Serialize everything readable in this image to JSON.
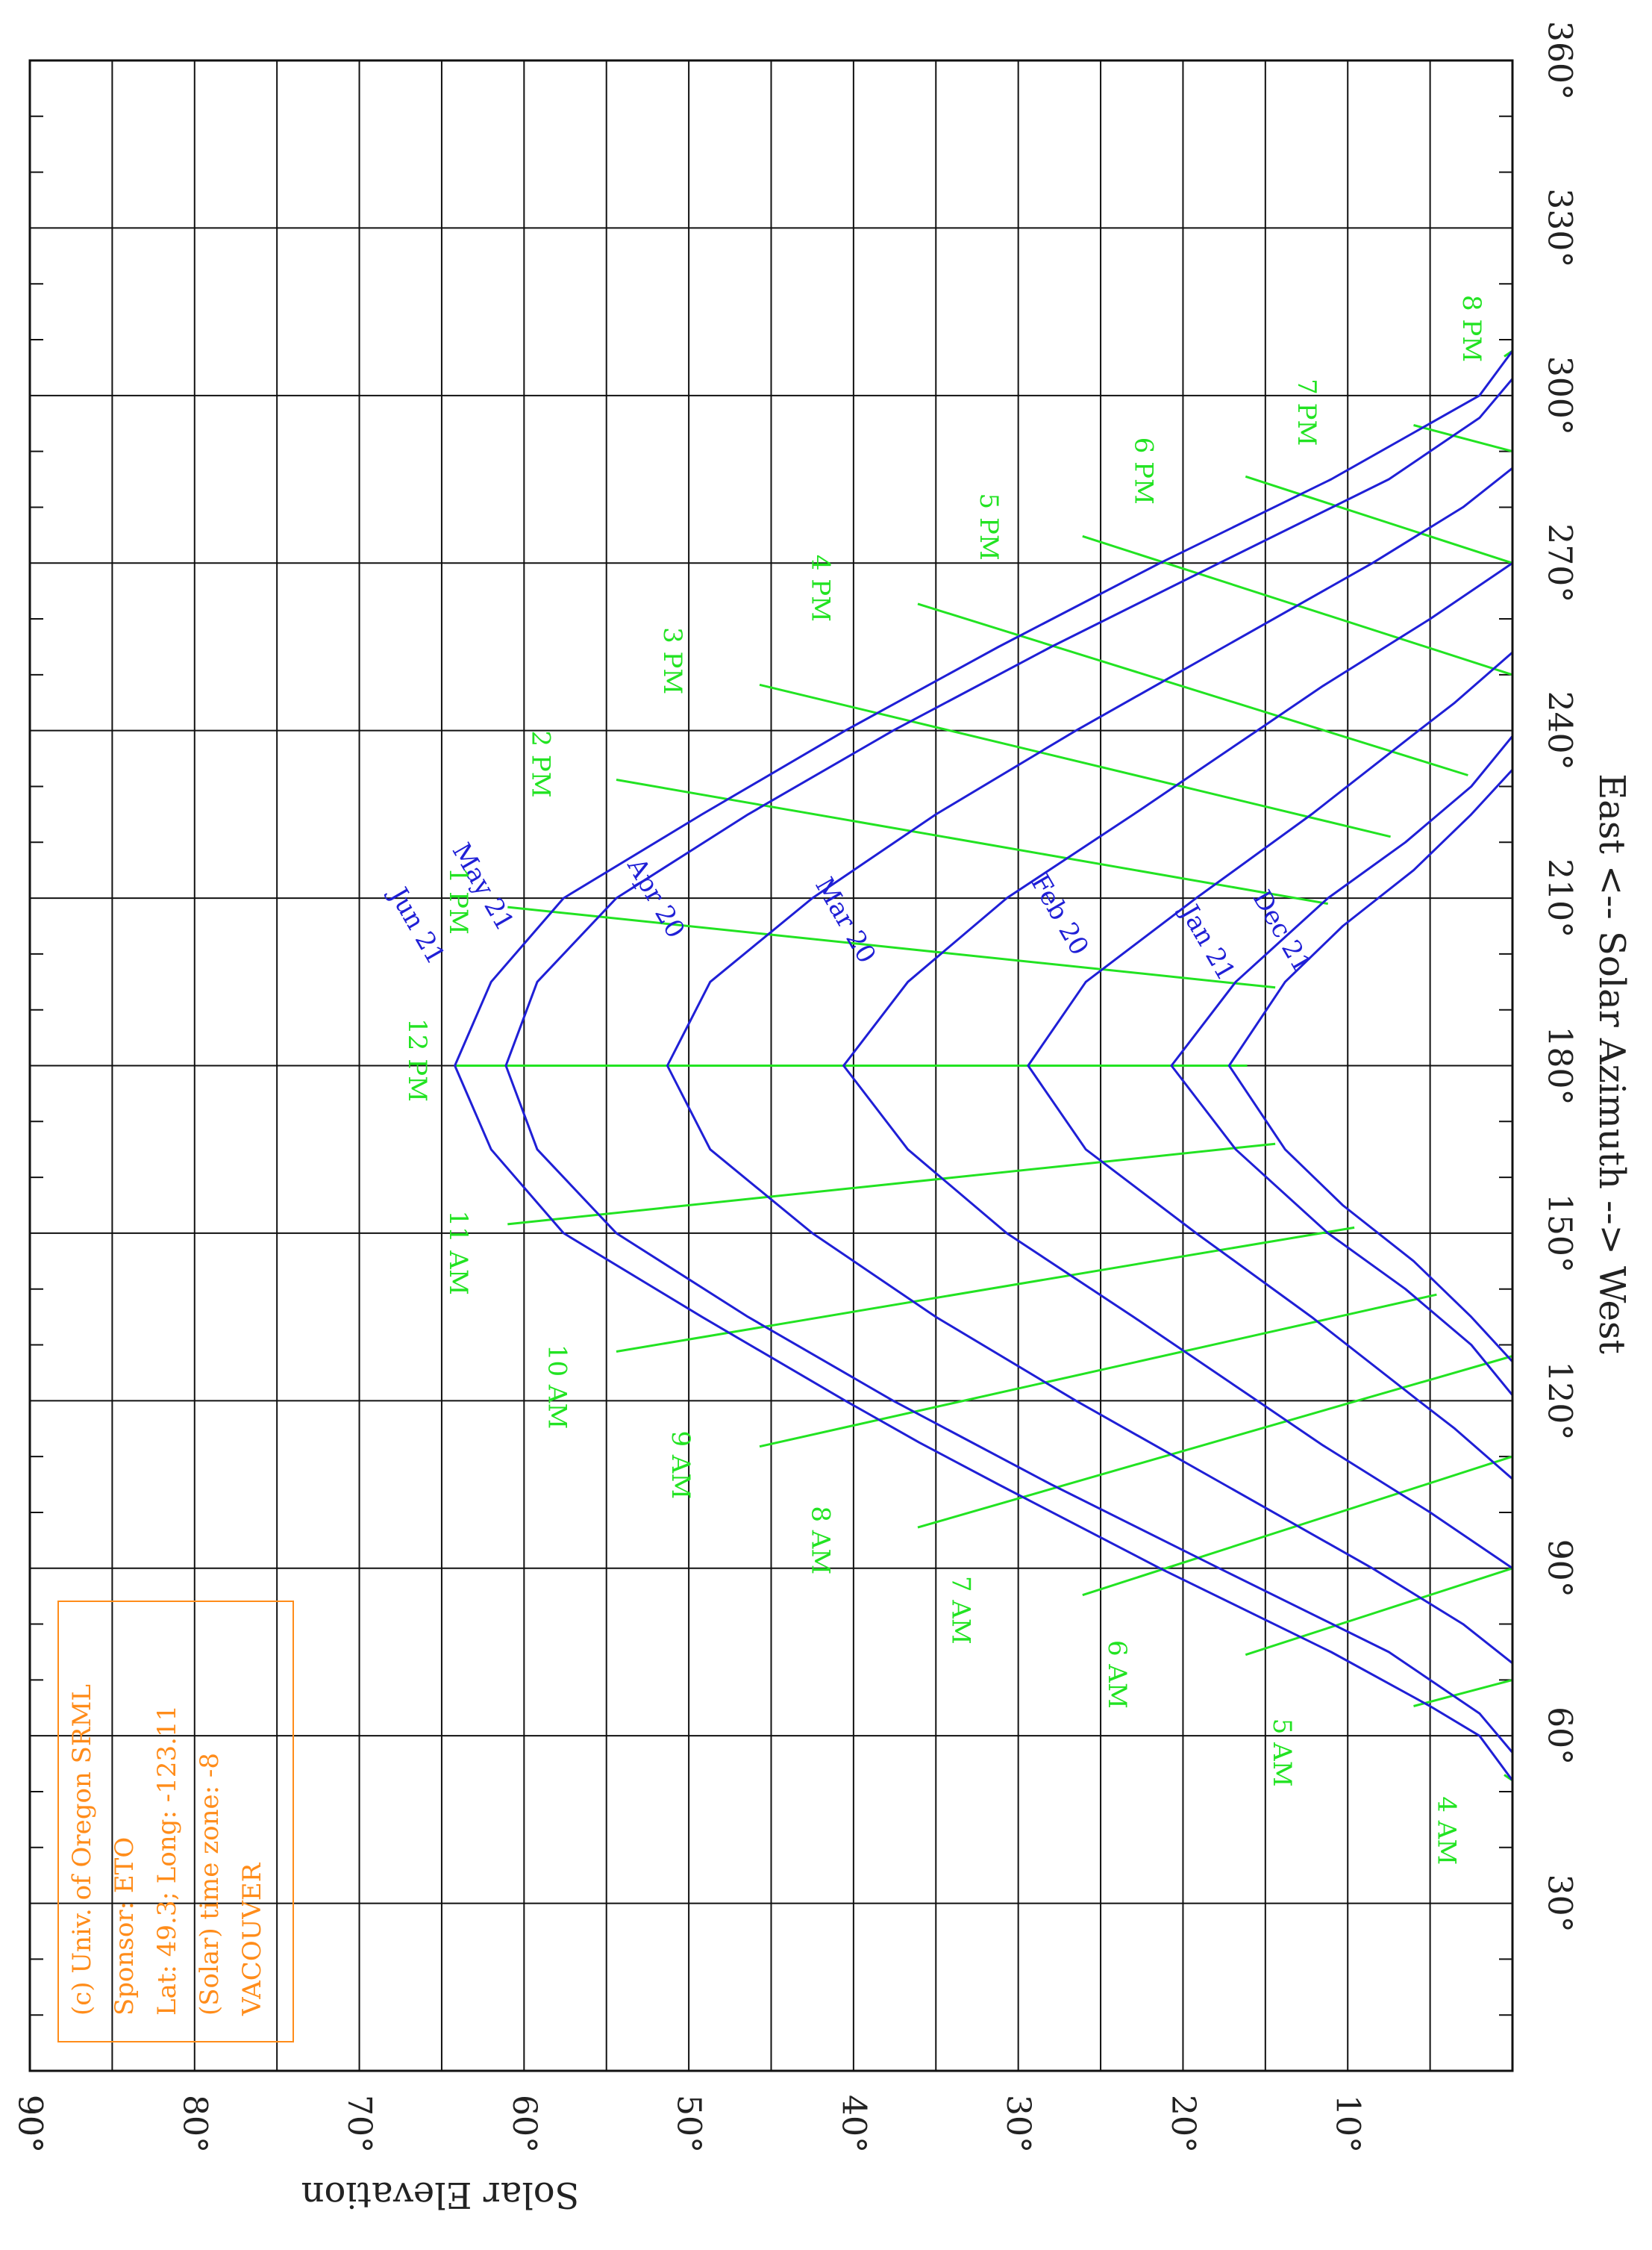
{
  "chart_data": {
    "type": "line",
    "x_axis": {
      "label": "East <-- Solar Azimuth --> West",
      "range": [
        0,
        360
      ],
      "tick_labels": [
        "30°",
        "60°",
        "90°",
        "120°",
        "150°",
        "180°",
        "210°",
        "240°",
        "270°",
        "300°",
        "330°",
        "360°"
      ],
      "tick_values": [
        30,
        60,
        90,
        120,
        150,
        180,
        210,
        240,
        270,
        300,
        330,
        360
      ]
    },
    "y_axis": {
      "label": "Solar Elevation",
      "range": [
        0,
        90
      ],
      "tick_labels": [
        "10°",
        "20°",
        "30°",
        "40°",
        "50°",
        "60°",
        "70°",
        "80°",
        "90°"
      ],
      "tick_values": [
        10,
        20,
        30,
        40,
        50,
        60,
        70,
        80,
        90
      ]
    },
    "grid": true,
    "orientation": "rotated 90° clockwise",
    "colors": {
      "sun_path": "#1f1fd6",
      "hour_line": "#22e322",
      "info_box": "#ff8c1a",
      "grid": "#111111"
    },
    "series": [
      {
        "name": "Jun 21",
        "points": [
          [
            52,
            0
          ],
          [
            60,
            2
          ],
          [
            65.3,
            5
          ],
          [
            75,
            11
          ],
          [
            90,
            21.4
          ],
          [
            105,
            31.2
          ],
          [
            112.5,
            36
          ],
          [
            120,
            40.5
          ],
          [
            135,
            49.2
          ],
          [
            150,
            57.6
          ],
          [
            165,
            62
          ],
          [
            180,
            64.2
          ],
          [
            195,
            62
          ],
          [
            210,
            57.6
          ],
          [
            225,
            49.2
          ],
          [
            240,
            40.5
          ],
          [
            255,
            31.2
          ],
          [
            270,
            21.4
          ],
          [
            285,
            11
          ],
          [
            300,
            2
          ],
          [
            308,
            0
          ]
        ]
      },
      {
        "name": "May 21",
        "points": [
          [
            57,
            0
          ],
          [
            64,
            2
          ],
          [
            75,
            7.5
          ],
          [
            90,
            17.8
          ],
          [
            105,
            28
          ],
          [
            120,
            37.6
          ],
          [
            135,
            46.4
          ],
          [
            150,
            54.4
          ],
          [
            165,
            59.2
          ],
          [
            180,
            61.1
          ],
          [
            195,
            59.2
          ],
          [
            210,
            54.4
          ],
          [
            225,
            46.4
          ],
          [
            240,
            37.6
          ],
          [
            255,
            28
          ],
          [
            270,
            17.8
          ],
          [
            285,
            7.5
          ],
          [
            296,
            2
          ],
          [
            303,
            0
          ]
        ]
      },
      {
        "name": "Apr 20",
        "points": [
          [
            73,
            0
          ],
          [
            80,
            3
          ],
          [
            90,
            8.5
          ],
          [
            105,
            17.5
          ],
          [
            120,
            26.5
          ],
          [
            135,
            35
          ],
          [
            150,
            42.5
          ],
          [
            165,
            48.7
          ],
          [
            180,
            51.3
          ],
          [
            195,
            48.7
          ],
          [
            210,
            42.5
          ],
          [
            225,
            35
          ],
          [
            240,
            26.5
          ],
          [
            255,
            17.5
          ],
          [
            270,
            8.5
          ],
          [
            280,
            3
          ],
          [
            287,
            0
          ]
        ]
      },
      {
        "name": "Mar 20",
        "points": [
          [
            90,
            0
          ],
          [
            100,
            5
          ],
          [
            112,
            11.5
          ],
          [
            120,
            15.5
          ],
          [
            135,
            23
          ],
          [
            150,
            30.7
          ],
          [
            165,
            36.7
          ],
          [
            180,
            40.6
          ],
          [
            195,
            36.7
          ],
          [
            210,
            30.7
          ],
          [
            225,
            23
          ],
          [
            240,
            15.5
          ],
          [
            248,
            11.5
          ],
          [
            260,
            5
          ],
          [
            270,
            0
          ]
        ]
      },
      {
        "name": "Feb 20",
        "points": [
          [
            106,
            0
          ],
          [
            115,
            3.5
          ],
          [
            120,
            5.7
          ],
          [
            135,
            12.2
          ],
          [
            150,
            19.2
          ],
          [
            165,
            25.9
          ],
          [
            180,
            29.4
          ],
          [
            195,
            25.9
          ],
          [
            210,
            19.2
          ],
          [
            225,
            12.2
          ],
          [
            240,
            5.7
          ],
          [
            245,
            3.5
          ],
          [
            254,
            0
          ]
        ]
      },
      {
        "name": "Jan 21",
        "points": [
          [
            121,
            0
          ],
          [
            130,
            2.5
          ],
          [
            140,
            6.5
          ],
          [
            150,
            11.2
          ],
          [
            165,
            16.8
          ],
          [
            180,
            20.7
          ],
          [
            195,
            16.8
          ],
          [
            210,
            11.2
          ],
          [
            220,
            6.5
          ],
          [
            230,
            2.5
          ],
          [
            239,
            0
          ]
        ]
      },
      {
        "name": "Dec 21",
        "points": [
          [
            127,
            0
          ],
          [
            135,
            2.5
          ],
          [
            145,
            6
          ],
          [
            155,
            10.3
          ],
          [
            165,
            13.8
          ],
          [
            180,
            17.2
          ],
          [
            195,
            13.8
          ],
          [
            205,
            10.3
          ],
          [
            215,
            6
          ],
          [
            225,
            2.5
          ],
          [
            233,
            0
          ]
        ]
      }
    ],
    "hour_lines": [
      {
        "name": "4 AM",
        "points": [
          [
            52,
            0
          ],
          [
            53,
            0.5
          ]
        ]
      },
      {
        "name": "5 AM",
        "points": [
          [
            65.3,
            6
          ],
          [
            70,
            0
          ]
        ]
      },
      {
        "name": "6 AM",
        "points": [
          [
            74.5,
            16.2
          ],
          [
            90,
            0
          ]
        ]
      },
      {
        "name": "7 AM",
        "points": [
          [
            85.2,
            26.1
          ],
          [
            110,
            0
          ]
        ]
      },
      {
        "name": "8 AM",
        "points": [
          [
            97.3,
            36.1
          ],
          [
            128,
            0
          ]
        ]
      },
      {
        "name": "9 AM",
        "points": [
          [
            111.8,
            45.7
          ],
          [
            139,
            4.6
          ]
        ]
      },
      {
        "name": "10 AM",
        "points": [
          [
            128.8,
            54.4
          ],
          [
            151,
            9.6
          ]
        ]
      },
      {
        "name": "11 AM",
        "points": [
          [
            151.6,
            61
          ],
          [
            166,
            14.4
          ]
        ]
      },
      {
        "name": "12 PM",
        "points": [
          [
            180,
            64.2
          ],
          [
            180,
            16.1
          ]
        ]
      },
      {
        "name": "1 PM",
        "points": [
          [
            208.4,
            61
          ],
          [
            194,
            14.4
          ]
        ]
      },
      {
        "name": "2 PM",
        "points": [
          [
            231.2,
            54.4
          ],
          [
            209,
            11.2
          ]
        ]
      },
      {
        "name": "3 PM",
        "points": [
          [
            248.2,
            45.7
          ],
          [
            221,
            7.4
          ]
        ]
      },
      {
        "name": "4 PM",
        "points": [
          [
            262.7,
            36.1
          ],
          [
            232,
            2.7
          ]
        ]
      },
      {
        "name": "5 PM",
        "points": [
          [
            274.8,
            26.1
          ],
          [
            250,
            0
          ]
        ]
      },
      {
        "name": "6 PM",
        "points": [
          [
            285.5,
            16.2
          ],
          [
            270,
            0
          ]
        ]
      },
      {
        "name": "7 PM",
        "points": [
          [
            294.7,
            6
          ],
          [
            290,
            0
          ]
        ]
      },
      {
        "name": "8 PM",
        "points": [
          [
            308,
            0
          ],
          [
            307,
            0.5
          ]
        ]
      }
    ]
  },
  "info": {
    "line1": "(c) Univ. of Oregon SRML",
    "line2": "Sponsor: ETO",
    "line3": "Lat: 49.3; Long: -123.11",
    "line4": "(Solar) time zone: -8",
    "line5": "VACOUVER"
  }
}
